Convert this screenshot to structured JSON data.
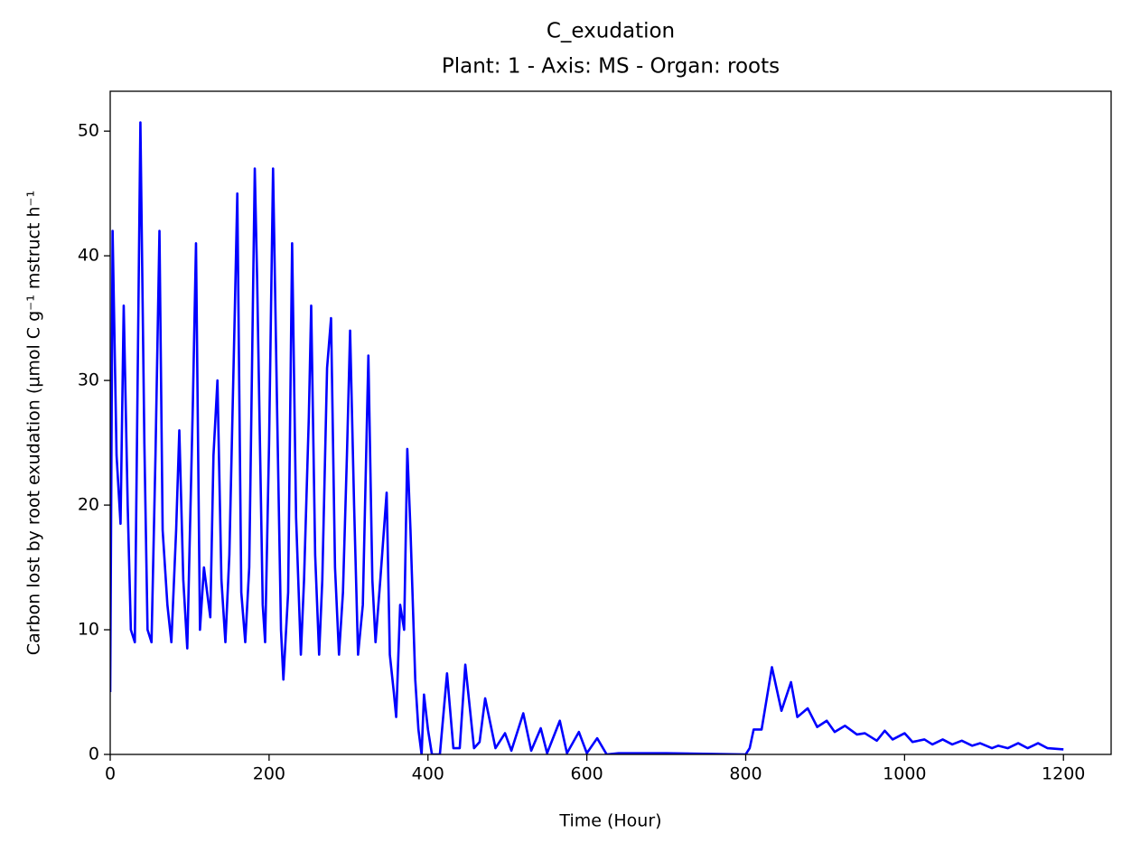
{
  "chart_data": {
    "type": "line",
    "title": "C_exudation",
    "subtitle": "Plant: 1 - Axis: MS - Organ: roots",
    "x_label": "Time (Hour)",
    "y_label": "Carbon lost by root exudation (µmol C g⁻¹ mstruct h⁻¹",
    "color": "#0000ff",
    "x": [
      0,
      3,
      8,
      13,
      17,
      22,
      26,
      31,
      38,
      43,
      47,
      52,
      57,
      62,
      66,
      72,
      77,
      83,
      87,
      92,
      97,
      104,
      108,
      113,
      118,
      126,
      130,
      135,
      140,
      145,
      150,
      157,
      160,
      165,
      170,
      175,
      182,
      185,
      192,
      195,
      200,
      205,
      210,
      215,
      218,
      224,
      229,
      234,
      240,
      244,
      250,
      253,
      258,
      263,
      267,
      273,
      278,
      283,
      288,
      293,
      298,
      302,
      307,
      312,
      318,
      325,
      330,
      334,
      340,
      348,
      352,
      357,
      360,
      365,
      370,
      374,
      378,
      384,
      388,
      392,
      395,
      400,
      405,
      415,
      424,
      432,
      440,
      447,
      458,
      465,
      472,
      485,
      497,
      505,
      520,
      530,
      542,
      550,
      566,
      575,
      590,
      600,
      613,
      625,
      640,
      660,
      700,
      800,
      805,
      810,
      820,
      833,
      845,
      857,
      865,
      878,
      890,
      902,
      912,
      925,
      940,
      950,
      965,
      975,
      985,
      1000,
      1010,
      1025,
      1035,
      1048,
      1060,
      1072,
      1085,
      1095,
      1110,
      1118,
      1130,
      1143,
      1155,
      1168,
      1180,
      1200
    ],
    "values": [
      5,
      42,
      24,
      18.5,
      36,
      20,
      10,
      9,
      50.7,
      25,
      10,
      9,
      24,
      42,
      18,
      12,
      9,
      18,
      26,
      14,
      8.5,
      28,
      41,
      10,
      15,
      11,
      24,
      30,
      14,
      9,
      16,
      36,
      45,
      13,
      9,
      15,
      47,
      38,
      12,
      9,
      25,
      47,
      28,
      10,
      6,
      13,
      41,
      19,
      8,
      14,
      27,
      36,
      16,
      8,
      14,
      31,
      35,
      15,
      8,
      13,
      24,
      34,
      20,
      8,
      12,
      32,
      14,
      9,
      14,
      21,
      8,
      5,
      3,
      12,
      10,
      24.5,
      18,
      6,
      2,
      0,
      4.8,
      2,
      0,
      0,
      6.5,
      0.5,
      0.5,
      7.2,
      0.5,
      1,
      4.5,
      0.5,
      1.7,
      0.3,
      3.3,
      0.3,
      2.1,
      0.1,
      2.7,
      0.1,
      1.8,
      0.1,
      1.3,
      0,
      0.1,
      0.1,
      0.1,
      0,
      0.5,
      2,
      2,
      7,
      3.5,
      5.8,
      3,
      3.7,
      2.2,
      2.7,
      1.8,
      2.3,
      1.6,
      1.7,
      1.1,
      1.9,
      1.2,
      1.7,
      1,
      1.2,
      0.8,
      1.2,
      0.8,
      1.1,
      0.7,
      0.9,
      0.5,
      0.7,
      0.5,
      0.9,
      0.5,
      0.9,
      0.5,
      0.4
    ],
    "xlim": [
      0,
      1260
    ],
    "ylim": [
      0,
      53.2
    ],
    "xticks": [
      0,
      200,
      400,
      600,
      800,
      1000,
      1200
    ],
    "yticks": [
      0,
      10,
      20,
      30,
      40,
      50
    ]
  }
}
